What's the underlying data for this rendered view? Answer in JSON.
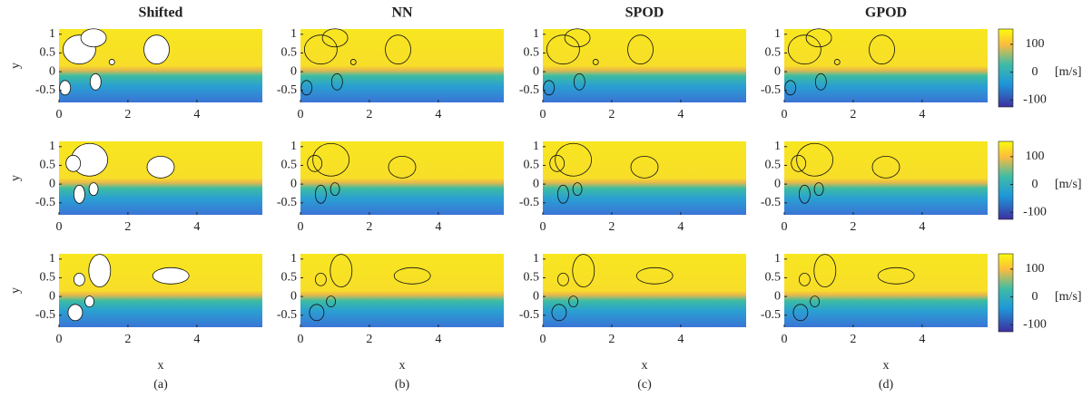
{
  "columns": [
    {
      "title": "Shifted",
      "caption": "(a)"
    },
    {
      "title": "NN",
      "caption": "(b)"
    },
    {
      "title": "SPOD",
      "caption": "(c)"
    },
    {
      "title": "GPOD",
      "caption": "(d)"
    }
  ],
  "x_axis": {
    "label": "x",
    "xlim": [
      0,
      5.9
    ],
    "xticks": [
      0,
      2,
      4
    ]
  },
  "y_axis": {
    "label": "y",
    "ylim": [
      -0.82,
      1.14
    ],
    "yticks": [
      1,
      0.5,
      0,
      -0.5
    ]
  },
  "colorbar": {
    "label": "[m/s]",
    "clim": [
      -125,
      155
    ],
    "ticks": [
      100,
      0,
      -100
    ]
  }
}
